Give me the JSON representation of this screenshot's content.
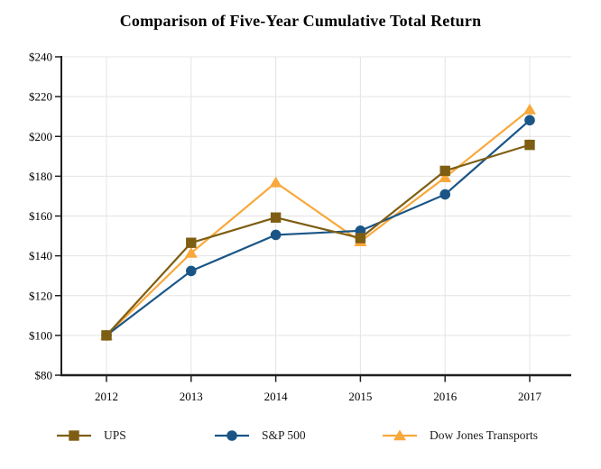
{
  "chart_data": {
    "type": "line",
    "title": "Comparison of Five-Year Cumulative Total Return",
    "x_categories": [
      "2012",
      "2013",
      "2014",
      "2015",
      "2016",
      "2017"
    ],
    "y_ticks": [
      240,
      220,
      200,
      180,
      160,
      140,
      120,
      100,
      80
    ],
    "y_tick_labels": [
      "$240",
      "$220",
      "$200",
      "$180",
      "$160",
      "$140",
      "$120",
      "$100",
      "$80"
    ],
    "ylim": [
      80,
      240
    ],
    "xlabel": "",
    "ylabel": "",
    "grid": true,
    "legend_position": "bottom",
    "series": [
      {
        "name": "UPS",
        "marker": "square",
        "color": "#7E5E13",
        "values": [
          100.0,
          146.54,
          159.23,
          148.89,
          182.7,
          195.75
        ]
      },
      {
        "name": "S&P 500",
        "marker": "circle",
        "color": "#1A5586",
        "values": [
          100.0,
          132.39,
          150.51,
          152.59,
          170.84,
          208.14
        ]
      },
      {
        "name": "Dow Jones Transports",
        "marker": "triangle",
        "color": "#F9A83C",
        "values": [
          100.0,
          141.38,
          176.83,
          147.19,
          179.37,
          213.49
        ]
      }
    ],
    "colors": {
      "axis": "#1f1f1f",
      "gridline": "#e4e4e4",
      "tick_label": "#000000"
    }
  }
}
